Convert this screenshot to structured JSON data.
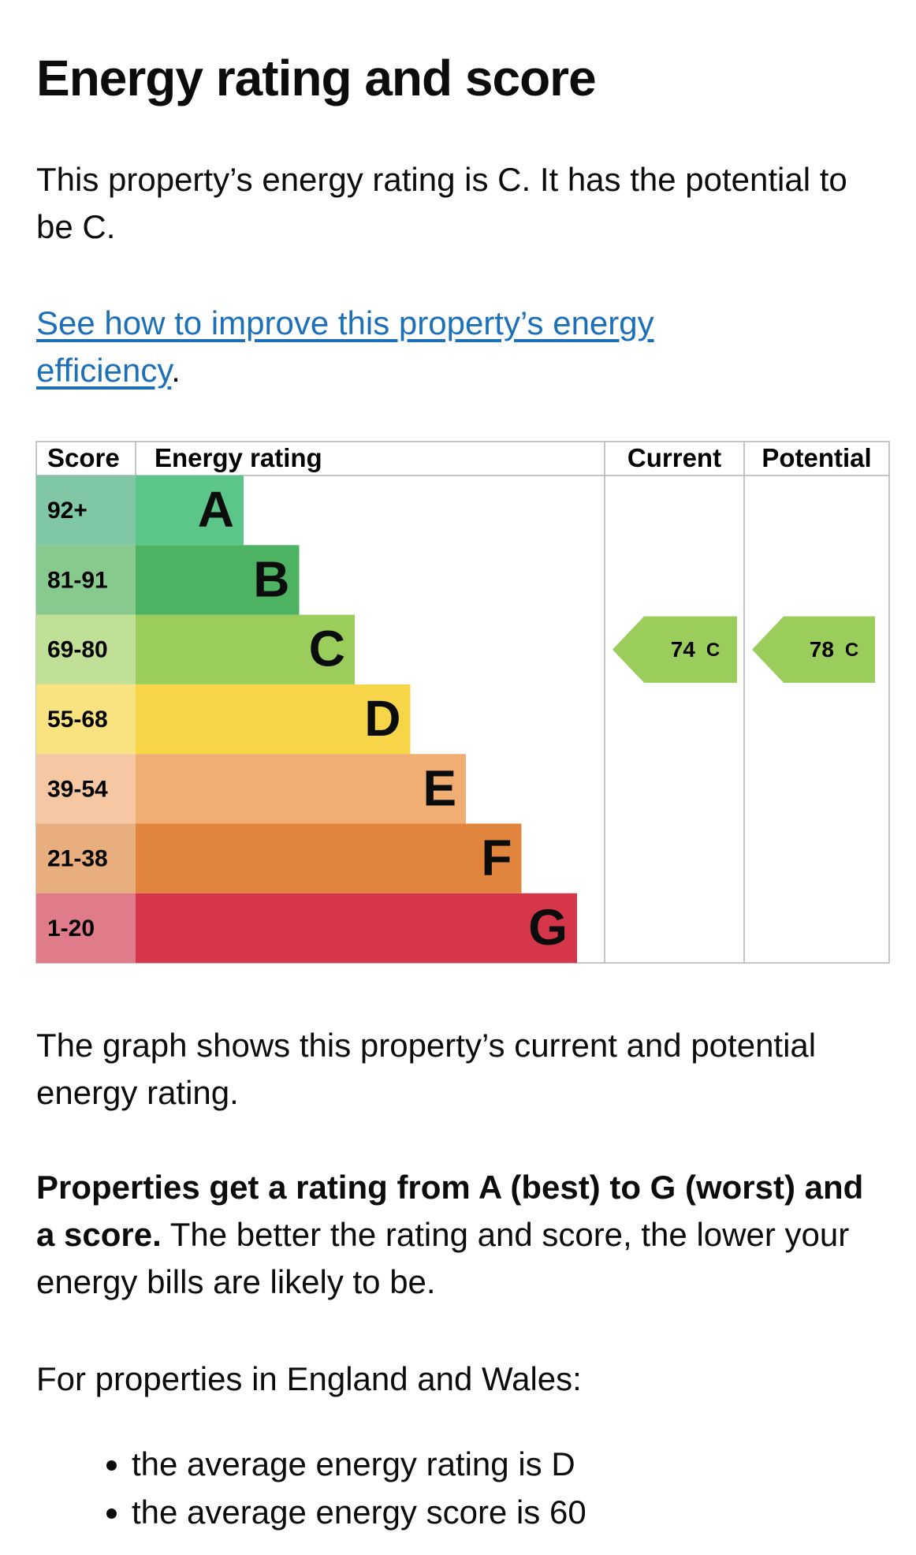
{
  "heading": "Energy rating and score",
  "intro": "This property’s energy rating is C. It has the potential to be C.",
  "link": {
    "text": "See how to improve this property’s energy efficiency",
    "after": "."
  },
  "graph": {
    "headers": [
      "Score",
      "Energy rating",
      "Current",
      "Potential"
    ],
    "bands": [
      {
        "score": "92+",
        "rating": "A",
        "color": "#5bc58a",
        "score_color": "#80c7a5"
      },
      {
        "score": "81-91",
        "rating": "B",
        "color": "#4db363",
        "score_color": "#88c98d"
      },
      {
        "score": "69-80",
        "rating": "C",
        "color": "#9acd5c",
        "score_color": "#bfe096"
      },
      {
        "score": "55-68",
        "rating": "D",
        "color": "#f6d548",
        "score_color": "#f9e380"
      },
      {
        "score": "39-54",
        "rating": "E",
        "color": "#f0ae72",
        "score_color": "#f5c8a3"
      },
      {
        "score": "21-38",
        "rating": "F",
        "color": "#e0843e",
        "score_color": "#e9ae7d"
      },
      {
        "score": "1-20",
        "rating": "G",
        "color": "#d5364a",
        "score_color": "#e07b8a"
      }
    ],
    "current": {
      "score": 74,
      "rating": "C"
    },
    "potential": {
      "score": 78,
      "rating": "C"
    }
  },
  "description": "The graph shows this property’s current and potential energy rating.",
  "properties": {
    "bold": "Properties get a rating from A (best) to G (worst) and a score.",
    "text": "The better the rating and score, the lower your energy bills are likely to be."
  },
  "england": "For properties in England and Wales:",
  "bullets": [
    "the average energy rating is D",
    "the average energy score is 60"
  ]
}
